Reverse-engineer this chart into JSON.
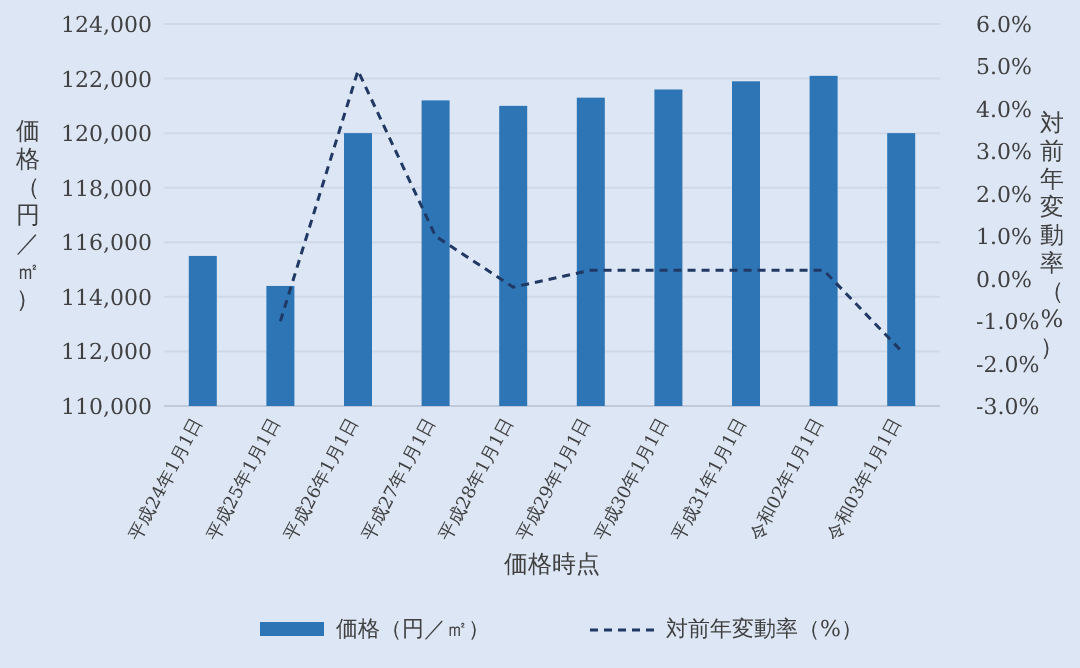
{
  "chart_data": {
    "type": "bar",
    "xlabel": "価格時点",
    "ylabel": "価格（円／㎡）",
    "y2label": "対前年変動率（%）",
    "categories": [
      "平成24年1月1日",
      "平成25年1月1日",
      "平成26年1月1日",
      "平成27年1月1日",
      "平成28年1月1日",
      "平成29年1月1日",
      "平成30年1月1日",
      "平成31年1月1日",
      "令和02年1月1日",
      "令和03年1月1日"
    ],
    "series": [
      {
        "name": "価格（円／㎡）",
        "color": "#2e75b6",
        "values": [
          115500,
          114400,
          120000,
          121200,
          121000,
          121300,
          121600,
          121900,
          122100,
          120000
        ]
      },
      {
        "name": "対前年変動率（%）",
        "type": "line",
        "axis": "y2",
        "line_style": "dashed",
        "color": "#203864",
        "values": [
          null,
          -1.0,
          4.9,
          1.0,
          -0.2,
          0.2,
          0.2,
          0.2,
          0.2,
          -1.7
        ]
      }
    ],
    "ylim": [
      110000,
      124000
    ],
    "yticks": [
      {
        "value": 110000,
        "label": "110,000"
      },
      {
        "value": 112000,
        "label": "112,000"
      },
      {
        "value": 114000,
        "label": "114,000"
      },
      {
        "value": 116000,
        "label": "116,000"
      },
      {
        "value": 118000,
        "label": "118,000"
      },
      {
        "value": 120000,
        "label": "120,000"
      },
      {
        "value": 122000,
        "label": "122,000"
      },
      {
        "value": 124000,
        "label": "124,000"
      }
    ],
    "y2lim": [
      -3,
      6
    ],
    "y2ticks": [
      {
        "value": -3,
        "label": "-3.0%"
      },
      {
        "value": -2,
        "label": "-2.0%"
      },
      {
        "value": -1,
        "label": "-1.0%"
      },
      {
        "value": 0,
        "label": "0.0%"
      },
      {
        "value": 1,
        "label": "1.0%"
      },
      {
        "value": 2,
        "label": "2.0%"
      },
      {
        "value": 3,
        "label": "3.0%"
      },
      {
        "value": 4,
        "label": "4.0%"
      },
      {
        "value": 5,
        "label": "5.0%"
      },
      {
        "value": 6,
        "label": "6.0%"
      }
    ],
    "grid": "y",
    "legend": "bottom"
  }
}
